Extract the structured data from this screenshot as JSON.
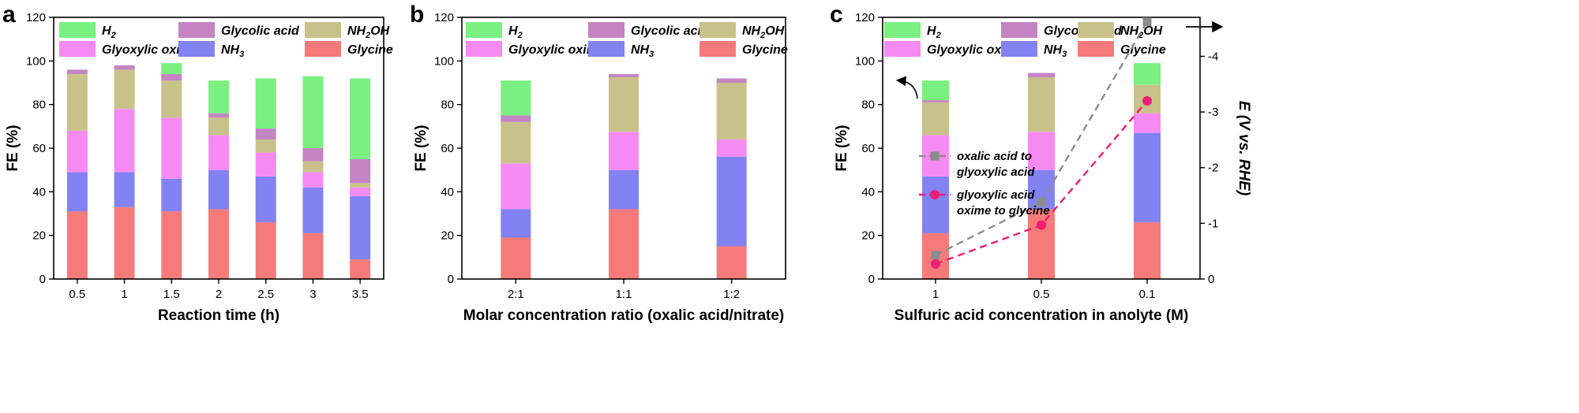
{
  "colors": {
    "Glycine": "#F67A7A",
    "NH3": "#8282F2",
    "Glyoxylic oxime": "#F68AF3",
    "NH2OH": "#C8C28A",
    "Glycolic acid": "#C484C3",
    "H2": "#7AF080",
    "oxalic": "#8C8C8C",
    "glyoxylic": "#EE1E72"
  },
  "legend_items": [
    {
      "key": "H2",
      "label": "H",
      "sub": "2"
    },
    {
      "key": "Glycolic acid",
      "label": "Glycolic acid"
    },
    {
      "key": "NH2OH",
      "label": "NH",
      "sub": "2",
      "tail": "OH"
    },
    {
      "key": "Glyoxylic oxime",
      "label": "Glyoxylic oxime"
    },
    {
      "key": "NH3",
      "label": "NH",
      "sub": "3"
    },
    {
      "key": "Glycine",
      "label": "Glycine"
    }
  ],
  "chart_data": [
    {
      "type": "bar",
      "stacked": true,
      "panel": "a",
      "xlabel": "Reaction time (h)",
      "ylabel": "FE (%)",
      "ylim": [
        0,
        120
      ],
      "yticks": [
        0,
        20,
        40,
        60,
        80,
        100,
        120
      ],
      "categories": [
        "0.5",
        "1",
        "1.5",
        "2",
        "2.5",
        "3",
        "3.5"
      ],
      "series": [
        {
          "name": "Glycine",
          "values": [
            31,
            33,
            31,
            32,
            26,
            21,
            9
          ]
        },
        {
          "name": "NH3",
          "values": [
            18,
            16,
            15,
            18,
            21,
            21,
            29
          ]
        },
        {
          "name": "Glyoxylic oxime",
          "values": [
            19,
            29,
            28,
            16,
            11,
            7,
            4
          ]
        },
        {
          "name": "NH2OH",
          "values": [
            26,
            18,
            17,
            8,
            6,
            5,
            2
          ]
        },
        {
          "name": "Glycolic acid",
          "values": [
            2,
            2,
            3,
            2,
            5,
            6,
            11
          ]
        },
        {
          "name": "H2",
          "values": [
            0,
            0,
            5,
            15,
            23,
            33,
            37
          ]
        }
      ]
    },
    {
      "type": "bar",
      "stacked": true,
      "panel": "b",
      "xlabel": "Molar concentration ratio (oxalic acid/nitrate)",
      "ylabel": "FE (%)",
      "ylim": [
        0,
        120
      ],
      "yticks": [
        0,
        20,
        40,
        60,
        80,
        100,
        120
      ],
      "categories": [
        "2:1",
        "1:1",
        "1:2"
      ],
      "series": [
        {
          "name": "Glycine",
          "values": [
            19,
            32,
            15
          ]
        },
        {
          "name": "NH3",
          "values": [
            13,
            18,
            41
          ]
        },
        {
          "name": "Glyoxylic oxime",
          "values": [
            21,
            17.5,
            8
          ]
        },
        {
          "name": "NH2OH",
          "values": [
            19,
            25,
            26
          ]
        },
        {
          "name": "Glycolic acid",
          "values": [
            3,
            1.5,
            2
          ]
        },
        {
          "name": "H2",
          "values": [
            16,
            0,
            0
          ]
        }
      ]
    },
    {
      "type": "bar",
      "stacked": true,
      "panel": "c",
      "xlabel": "Sulfuric acid concentration in anolyte (M)",
      "ylabel": "FE (%)",
      "ylabel_right": "E (V vs. RHE)",
      "ylim": [
        0,
        120
      ],
      "yticks": [
        0,
        20,
        40,
        60,
        80,
        100,
        120
      ],
      "y2lim": [
        0,
        -4.7
      ],
      "y2ticks": [
        0,
        -1,
        -2,
        -3,
        -4
      ],
      "y2ticklabels": [
        "0",
        "-1",
        "-2",
        "-3",
        "-4"
      ],
      "categories": [
        "1",
        "0.5",
        "0.1"
      ],
      "series": [
        {
          "name": "Glycine",
          "values": [
            21,
            32,
            26
          ]
        },
        {
          "name": "NH3",
          "values": [
            26,
            18,
            41
          ]
        },
        {
          "name": "Glyoxylic oxime",
          "values": [
            19,
            17.5,
            9
          ]
        },
        {
          "name": "NH2OH",
          "values": [
            15,
            25,
            13
          ]
        },
        {
          "name": "Glycolic acid",
          "values": [
            1,
            2,
            0
          ]
        },
        {
          "name": "H2",
          "values": [
            9,
            0,
            10
          ]
        }
      ],
      "lines": [
        {
          "name": "oxalic acid to glyoxylic acid",
          "name_lines": [
            "oxalic acid to",
            "glyoxylic acid"
          ],
          "marker": "square",
          "color": "#8C8C8C",
          "values": [
            -0.43,
            -1.38,
            -4.62
          ]
        },
        {
          "name": "glyoxylic acid oxime to glycine",
          "name_lines": [
            "glyoxylic acid",
            "oxime to glycine"
          ],
          "marker": "circle",
          "color": "#EE1E72",
          "values": [
            -0.27,
            -0.97,
            -3.2
          ]
        }
      ]
    }
  ]
}
